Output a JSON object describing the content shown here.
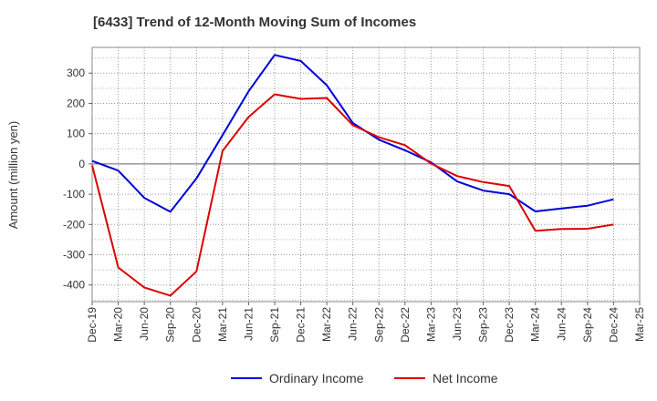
{
  "chart_data": {
    "type": "line",
    "title": "[6433]  Trend of 12-Month Moving Sum of Incomes",
    "xlabel": "",
    "ylabel": "Amount (million yen)",
    "ylim": [
      -455,
      385
    ],
    "yticks": [
      300,
      200,
      100,
      0,
      -100,
      -200,
      -300,
      -400
    ],
    "grid": true,
    "legend_position": "bottom-center",
    "categories": [
      "Dec-19",
      "Mar-20",
      "Jun-20",
      "Sep-20",
      "Dec-20",
      "Mar-21",
      "Jun-21",
      "Sep-21",
      "Dec-21",
      "Mar-22",
      "Jun-22",
      "Sep-22",
      "Dec-22",
      "Mar-23",
      "Jun-23",
      "Sep-23",
      "Dec-23",
      "Mar-24",
      "Jun-24",
      "Sep-24",
      "Dec-24",
      "Mar-25"
    ],
    "series": [
      {
        "name": "Ordinary Income",
        "color": "#0000dd",
        "values": [
          10,
          -22,
          -112,
          -158,
          -48,
          95,
          240,
          360,
          340,
          260,
          135,
          80,
          45,
          5,
          -58,
          -88,
          -100,
          -157,
          -147,
          -138,
          -117,
          null
        ]
      },
      {
        "name": "Net Income",
        "color": "#dd0000",
        "values": [
          -5,
          -342,
          -408,
          -435,
          -355,
          43,
          155,
          230,
          215,
          218,
          128,
          88,
          62,
          1,
          -40,
          -60,
          -73,
          -221,
          -215,
          -214,
          -200,
          null
        ]
      }
    ]
  }
}
